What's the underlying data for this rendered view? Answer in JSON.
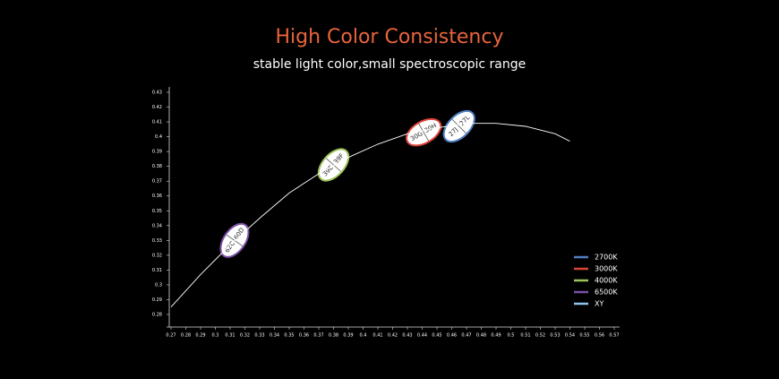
{
  "chart_data": {
    "type": "scatter",
    "title": "High Color Consistency",
    "subtitle": "stable light color,small spectroscopic range",
    "xlim": [
      0.27,
      0.57
    ],
    "ylim": [
      0.28,
      0.43
    ],
    "xticks": [
      0.27,
      0.28,
      0.29,
      0.3,
      0.31,
      0.32,
      0.33,
      0.34,
      0.35,
      0.36,
      0.37,
      0.38,
      0.39,
      0.4,
      0.41,
      0.42,
      0.43,
      0.44,
      0.45,
      0.46,
      0.47,
      0.48,
      0.49,
      0.5,
      0.51,
      0.52,
      0.53,
      0.54,
      0.55,
      0.56,
      0.57
    ],
    "yticks": [
      0.28,
      0.29,
      0.3,
      0.31,
      0.32,
      0.33,
      0.34,
      0.35,
      0.36,
      0.37,
      0.38,
      0.39,
      0.4,
      0.41,
      0.42,
      0.43
    ],
    "series": [
      {
        "name": "2700K",
        "color": "#4f7ec2",
        "labels": [
          "27J",
          "27L"
        ],
        "x": [
          0.465
        ],
        "values": [
          0.407
        ]
      },
      {
        "name": "3000K",
        "color": "#d9443a",
        "labels": [
          "30G",
          "30H"
        ],
        "x": [
          0.441
        ],
        "values": [
          0.403
        ]
      },
      {
        "name": "4000K",
        "color": "#9cc45a",
        "labels": [
          "39E",
          "39F"
        ],
        "x": [
          0.38
        ],
        "values": [
          0.381
        ]
      },
      {
        "name": "6500K",
        "color": "#7b4fa6",
        "labels": [
          "62C",
          "60D"
        ],
        "x": [
          0.313
        ],
        "values": [
          0.33
        ]
      },
      {
        "name": "XY",
        "color": "#8fc3ec",
        "type": "line",
        "x": [
          0.27,
          0.29,
          0.31,
          0.33,
          0.35,
          0.37,
          0.39,
          0.41,
          0.43,
          0.45,
          0.47,
          0.49,
          0.51,
          0.53,
          0.54
        ],
        "values": [
          0.285,
          0.307,
          0.327,
          0.345,
          0.362,
          0.375,
          0.386,
          0.395,
          0.402,
          0.406,
          0.409,
          0.409,
          0.407,
          0.402,
          0.397
        ]
      }
    ]
  }
}
